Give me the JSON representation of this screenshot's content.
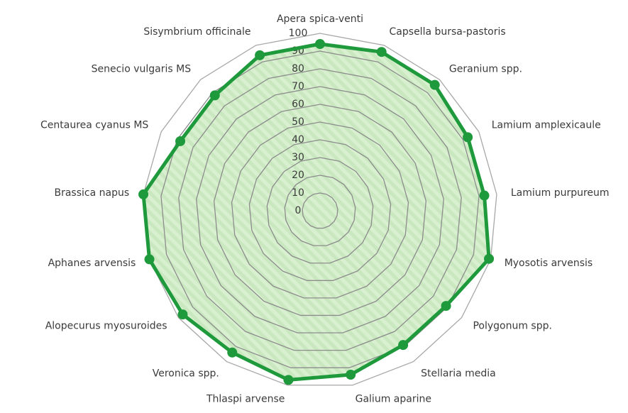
{
  "chart_data": {
    "type": "radar",
    "categories": [
      "Apera spica-venti",
      "Capsella bursa-pastoris",
      "Geranium spp.",
      "Lamium amplexicaule",
      "Lamium purpureum",
      "Myosotis arvensis",
      "Polygonum spp.",
      "Stellaria media",
      "Galium aparine",
      "Thlaspi arvense",
      "Veronica spp.",
      "Alopecurus myosuroides",
      "Aphanes arvensis",
      "Brassica napus",
      "Centaurea cyanus MS",
      "Senecio vulgaris MS",
      "Sisymbrium officinale"
    ],
    "series": [
      {
        "color": "#1e9a3c",
        "values": [
          94,
          96,
          96,
          93,
          93,
          99,
          89,
          89,
          94,
          97,
          94,
          97,
          100,
          100,
          88,
          88,
          94
        ]
      }
    ],
    "ylim": [
      0,
      100
    ],
    "yticks": [
      0,
      10,
      20,
      30,
      40,
      50,
      60,
      70,
      80,
      90,
      100
    ],
    "grid": true
  }
}
